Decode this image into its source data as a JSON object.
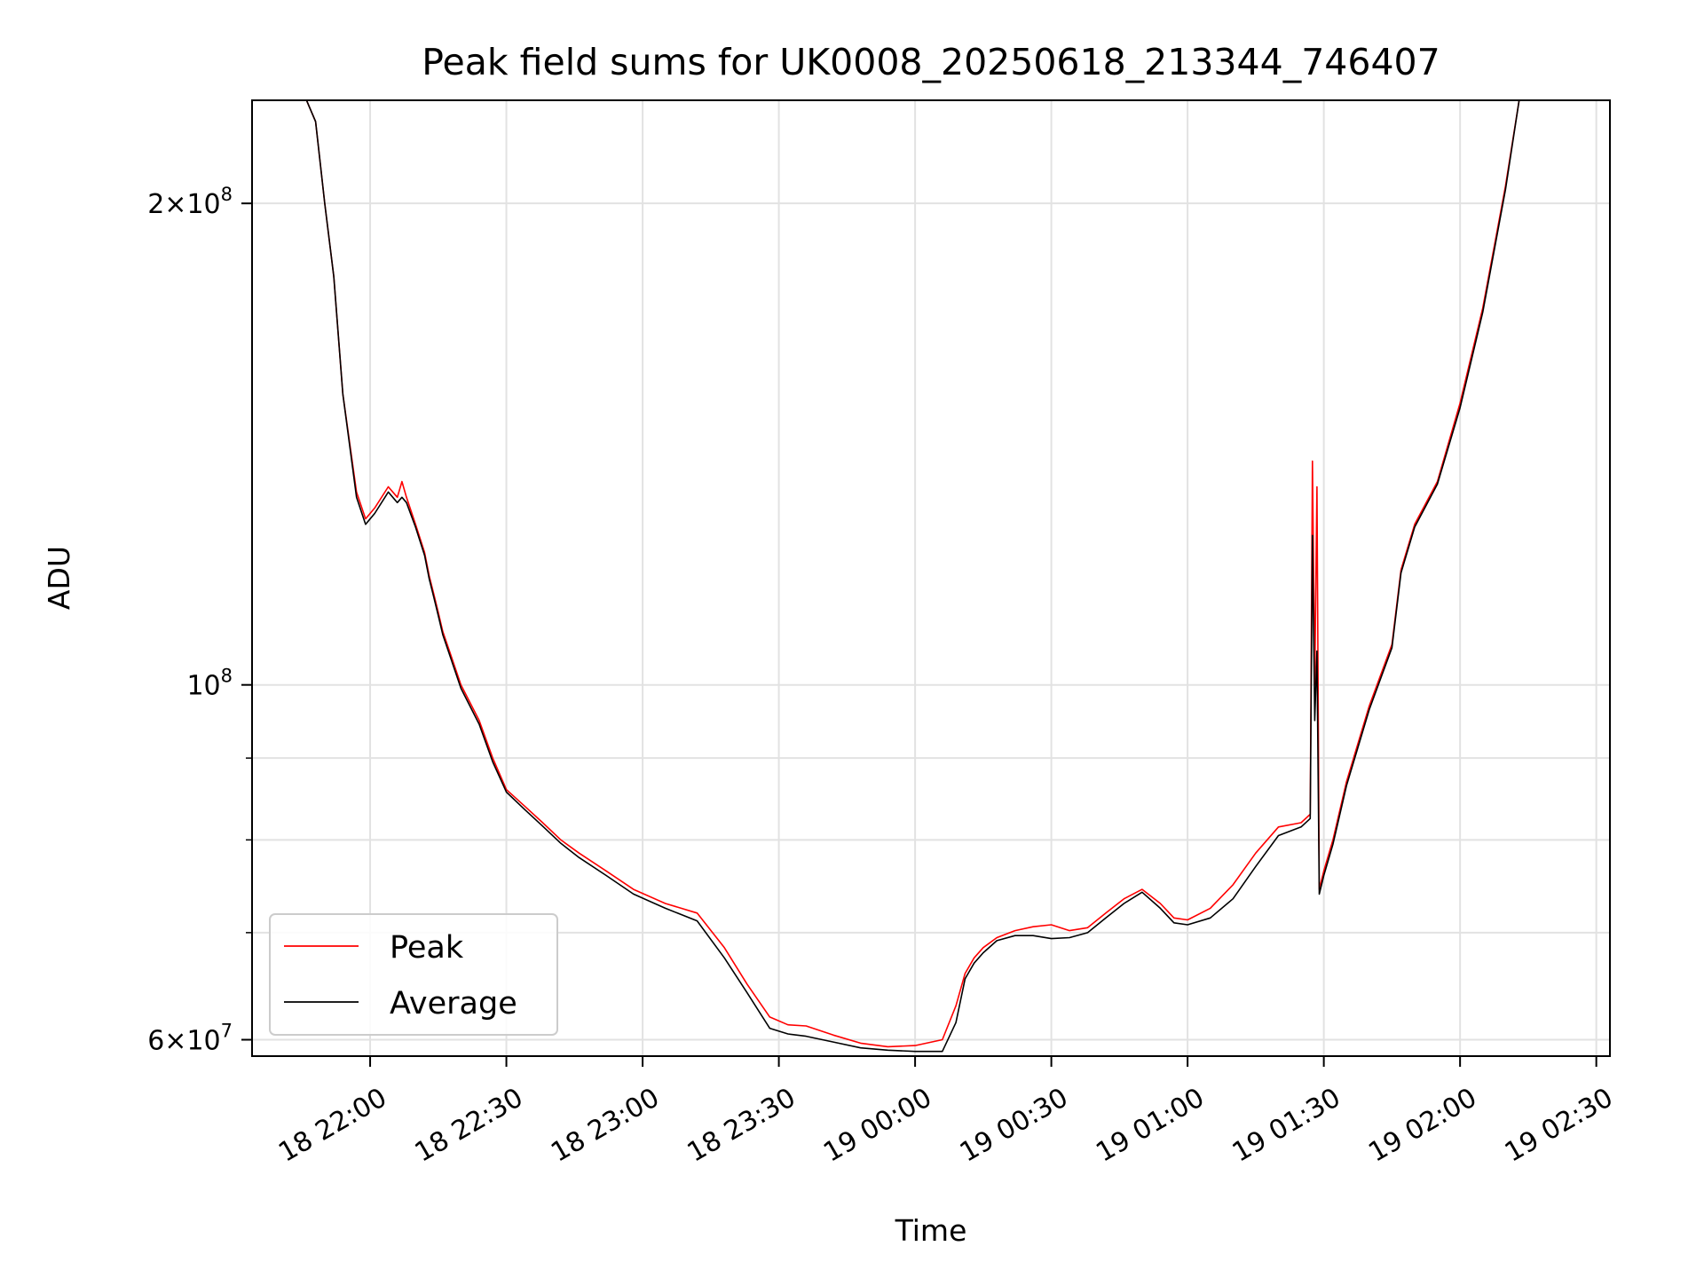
{
  "chart_data": {
    "type": "line",
    "title": "Peak field sums for UK0008_20250618_213344_746407",
    "xlabel": "Time",
    "ylabel": "ADU",
    "yscale": "log",
    "xlim": [
      "2025-06-18T21:34:00",
      "2025-06-19T02:33:00"
    ],
    "ylim": [
      58600000,
      232000000
    ],
    "grid": true,
    "legend_position": "lower-left",
    "x_tick_labels": [
      "18 22:00",
      "18 22:30",
      "18 23:00",
      "18 23:30",
      "19 00:00",
      "19 00:30",
      "19 01:00",
      "19 01:30",
      "19 02:00",
      "19 02:30"
    ],
    "x_tick_values": [
      "2025-06-18T22:00",
      "2025-06-18T22:30",
      "2025-06-18T23:00",
      "2025-06-18T23:30",
      "2025-06-19T00:00",
      "2025-06-19T00:30",
      "2025-06-19T01:00",
      "2025-06-19T01:30",
      "2025-06-19T02:00",
      "2025-06-19T02:30"
    ],
    "y_major_ticks": [
      {
        "value": 60000000,
        "base": "6",
        "exp": "7"
      },
      {
        "value": 100000000,
        "base": "",
        "exp": "8"
      },
      {
        "value": 200000000,
        "base": "2",
        "exp": "8"
      }
    ],
    "y_minor_ticks": [
      70000000,
      80000000,
      90000000
    ],
    "series": [
      {
        "name": "Peak",
        "color": "#ff0000",
        "x": [
          "2025-06-18T21:46:00",
          "2025-06-18T21:48:00",
          "2025-06-18T21:50:00",
          "2025-06-18T21:52:00",
          "2025-06-18T21:54:00",
          "2025-06-18T21:57:00",
          "2025-06-18T21:59:00",
          "2025-06-18T22:01:00",
          "2025-06-18T22:04:00",
          "2025-06-18T22:06:00",
          "2025-06-18T22:07:00",
          "2025-06-18T22:08:00",
          "2025-06-18T22:10:00",
          "2025-06-18T22:12:00",
          "2025-06-18T22:13:00",
          "2025-06-18T22:14:00",
          "2025-06-18T22:15:00",
          "2025-06-18T22:16:00",
          "2025-06-18T22:20:00",
          "2025-06-18T22:24:00",
          "2025-06-18T22:27:00",
          "2025-06-18T22:30:00",
          "2025-06-18T22:34:00",
          "2025-06-18T22:38:00",
          "2025-06-18T22:42:00",
          "2025-06-18T22:46:00",
          "2025-06-18T22:52:00",
          "2025-06-18T22:58:00",
          "2025-06-18T23:05:00",
          "2025-06-18T23:12:00",
          "2025-06-18T23:18:00",
          "2025-06-18T23:23:00",
          "2025-06-18T23:28:00",
          "2025-06-18T23:32:00",
          "2025-06-18T23:36:00",
          "2025-06-18T23:42:00",
          "2025-06-18T23:48:00",
          "2025-06-18T23:54:00",
          "2025-06-19T00:00:00",
          "2025-06-19T00:06:00",
          "2025-06-19T00:09:00",
          "2025-06-19T00:11:00",
          "2025-06-19T00:13:00",
          "2025-06-19T00:15:00",
          "2025-06-19T00:18:00",
          "2025-06-19T00:22:00",
          "2025-06-19T00:26:00",
          "2025-06-19T00:30:00",
          "2025-06-19T00:34:00",
          "2025-06-19T00:38:00",
          "2025-06-19T00:42:00",
          "2025-06-19T00:46:00",
          "2025-06-19T00:50:00",
          "2025-06-19T00:54:00",
          "2025-06-19T00:57:00",
          "2025-06-19T01:00:00",
          "2025-06-19T01:05:00",
          "2025-06-19T01:10:00",
          "2025-06-19T01:15:00",
          "2025-06-19T01:20:00",
          "2025-06-19T01:25:00",
          "2025-06-19T01:27:00",
          "2025-06-19T01:27:30",
          "2025-06-19T01:28:00",
          "2025-06-19T01:28:30",
          "2025-06-19T01:29:00",
          "2025-06-19T01:30:00",
          "2025-06-19T01:32:00",
          "2025-06-19T01:35:00",
          "2025-06-19T01:40:00",
          "2025-06-19T01:45:00",
          "2025-06-19T01:47:00",
          "2025-06-19T01:50:00",
          "2025-06-19T01:55:00",
          "2025-06-19T02:00:00",
          "2025-06-19T02:05:00",
          "2025-06-19T02:10:00",
          "2025-06-19T02:13:00"
        ],
        "values": [
          232000000,
          225000000,
          200000000,
          180000000,
          152000000,
          132000000,
          127000000,
          129000000,
          133000000,
          131000000,
          134000000,
          131000000,
          126000000,
          121000000,
          117000000,
          114000000,
          111000000,
          108000000,
          100000000,
          95000000,
          90000000,
          86000000,
          84000000,
          82000000,
          80000000,
          78500000,
          76500000,
          74500000,
          73000000,
          72000000,
          68500000,
          65000000,
          62000000,
          61300000,
          61200000,
          60400000,
          59700000,
          59400000,
          59500000,
          60000000,
          63000000,
          66000000,
          67500000,
          68500000,
          69500000,
          70200000,
          70600000,
          70800000,
          70200000,
          70500000,
          72000000,
          73500000,
          74500000,
          73000000,
          71500000,
          71300000,
          72500000,
          75000000,
          78500000,
          81500000,
          82000000,
          83000000,
          138000000,
          100000000,
          133000000,
          74500000,
          76500000,
          80000000,
          87000000,
          97000000,
          106000000,
          118000000,
          126000000,
          134000000,
          150000000,
          172000000,
          205000000,
          232000000
        ]
      },
      {
        "name": "Average",
        "color": "#000000",
        "x": [
          "2025-06-18T21:46:00",
          "2025-06-18T21:48:00",
          "2025-06-18T21:50:00",
          "2025-06-18T21:52:00",
          "2025-06-18T21:54:00",
          "2025-06-18T21:57:00",
          "2025-06-18T21:59:00",
          "2025-06-18T22:01:00",
          "2025-06-18T22:04:00",
          "2025-06-18T22:06:00",
          "2025-06-18T22:07:00",
          "2025-06-18T22:08:00",
          "2025-06-18T22:10:00",
          "2025-06-18T22:12:00",
          "2025-06-18T22:13:00",
          "2025-06-18T22:14:00",
          "2025-06-18T22:15:00",
          "2025-06-18T22:16:00",
          "2025-06-18T22:20:00",
          "2025-06-18T22:24:00",
          "2025-06-18T22:27:00",
          "2025-06-18T22:30:00",
          "2025-06-18T22:34:00",
          "2025-06-18T22:38:00",
          "2025-06-18T22:42:00",
          "2025-06-18T22:46:00",
          "2025-06-18T22:52:00",
          "2025-06-18T22:58:00",
          "2025-06-18T23:05:00",
          "2025-06-18T23:12:00",
          "2025-06-18T23:18:00",
          "2025-06-18T23:23:00",
          "2025-06-18T23:28:00",
          "2025-06-18T23:32:00",
          "2025-06-18T23:36:00",
          "2025-06-18T23:42:00",
          "2025-06-18T23:48:00",
          "2025-06-18T23:54:00",
          "2025-06-19T00:00:00",
          "2025-06-19T00:06:00",
          "2025-06-19T00:09:00",
          "2025-06-19T00:11:00",
          "2025-06-19T00:13:00",
          "2025-06-19T00:15:00",
          "2025-06-19T00:18:00",
          "2025-06-19T00:22:00",
          "2025-06-19T00:26:00",
          "2025-06-19T00:30:00",
          "2025-06-19T00:34:00",
          "2025-06-19T00:38:00",
          "2025-06-19T00:42:00",
          "2025-06-19T00:46:00",
          "2025-06-19T00:50:00",
          "2025-06-19T00:54:00",
          "2025-06-19T00:57:00",
          "2025-06-19T01:00:00",
          "2025-06-19T01:05:00",
          "2025-06-19T01:10:00",
          "2025-06-19T01:15:00",
          "2025-06-19T01:20:00",
          "2025-06-19T01:25:00",
          "2025-06-19T01:27:00",
          "2025-06-19T01:27:30",
          "2025-06-19T01:28:00",
          "2025-06-19T01:28:30",
          "2025-06-19T01:29:00",
          "2025-06-19T01:30:00",
          "2025-06-19T01:32:00",
          "2025-06-19T01:35:00",
          "2025-06-19T01:40:00",
          "2025-06-19T01:45:00",
          "2025-06-19T01:47:00",
          "2025-06-19T01:50:00",
          "2025-06-19T01:55:00",
          "2025-06-19T02:00:00",
          "2025-06-19T02:05:00",
          "2025-06-19T02:10:00",
          "2025-06-19T02:13:00"
        ],
        "values": [
          232000000,
          225000000,
          200000000,
          180000000,
          152000000,
          131000000,
          126000000,
          128000000,
          132000000,
          130000000,
          131000000,
          130000000,
          125500000,
          120500000,
          116500000,
          113500000,
          110500000,
          107500000,
          99500000,
          94500000,
          89500000,
          85700000,
          83600000,
          81600000,
          79600000,
          78000000,
          76000000,
          74000000,
          72500000,
          71200000,
          67500000,
          64200000,
          61000000,
          60500000,
          60300000,
          59800000,
          59300000,
          59100000,
          59000000,
          59000000,
          61500000,
          65500000,
          67000000,
          68000000,
          69200000,
          69700000,
          69700000,
          69400000,
          69500000,
          70000000,
          71500000,
          73000000,
          74200000,
          72500000,
          71000000,
          70800000,
          71500000,
          73500000,
          77000000,
          80500000,
          81500000,
          82500000,
          124000000,
          95000000,
          105000000,
          74000000,
          76000000,
          79500000,
          86500000,
          96500000,
          105500000,
          117500000,
          125500000,
          133500000,
          149000000,
          171000000,
          204000000,
          232000000
        ]
      }
    ]
  }
}
